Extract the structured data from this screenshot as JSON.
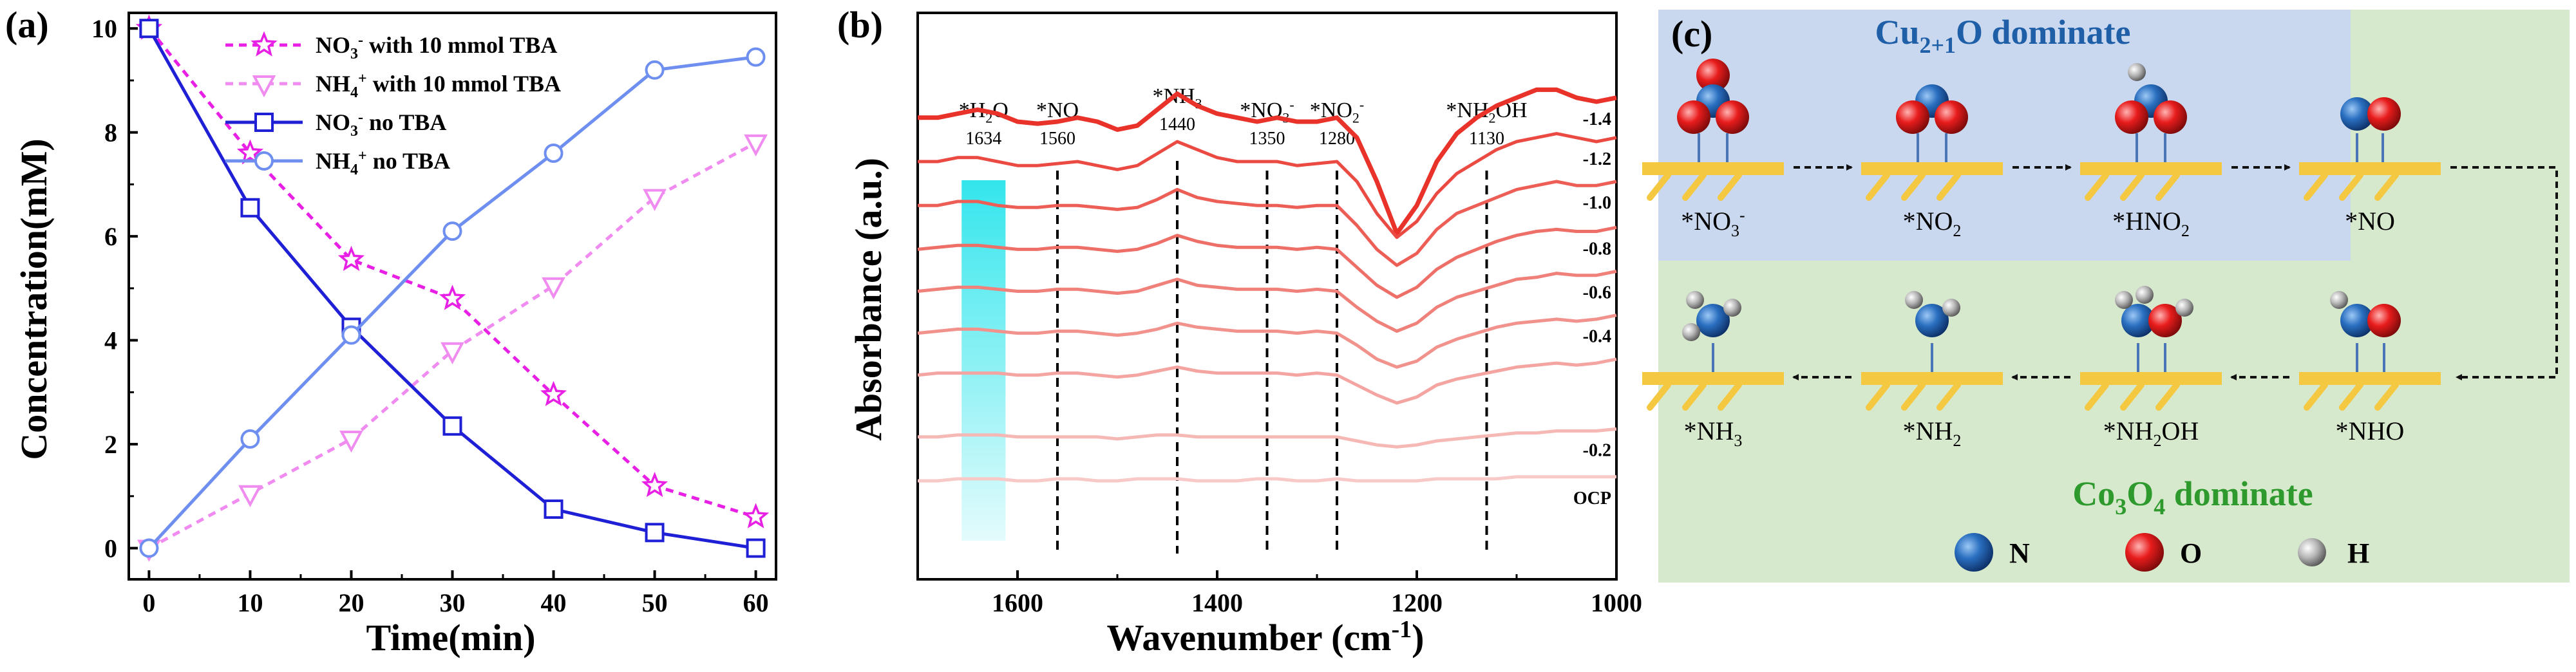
{
  "panel_labels": {
    "a": "(a)",
    "b": "(b)",
    "c": "(c)"
  },
  "chart_data": [
    {
      "type": "line",
      "panel": "(a)",
      "xlabel": "Time(min)",
      "ylabel": "Concentration(mM)",
      "xlim": [
        -2,
        62
      ],
      "ylim": [
        -0.6,
        10.3
      ],
      "xticks": [
        0,
        10,
        20,
        30,
        40,
        50,
        60
      ],
      "yticks": [
        0,
        2,
        4,
        6,
        8,
        10
      ],
      "x": [
        0,
        10,
        20,
        30,
        40,
        50,
        60
      ],
      "series": [
        {
          "name_main": "NO",
          "name_sub": "3",
          "name_sup": "-",
          "name_rest": " with 10 mmol TBA",
          "values": [
            10.0,
            7.6,
            5.55,
            4.8,
            2.95,
            1.2,
            0.6
          ],
          "color": "#e81fe4",
          "marker": "star",
          "dashed": true
        },
        {
          "name_main": "NH",
          "name_sub": "4",
          "name_sup": "+",
          "name_rest": " with 10 mmol TBA",
          "values": [
            0.0,
            1.05,
            2.1,
            3.8,
            5.05,
            6.75,
            7.8
          ],
          "color": "#f08cf0",
          "marker": "triangle-down",
          "dashed": true
        },
        {
          "name_main": "NO",
          "name_sub": "3",
          "name_sup": "-",
          "name_rest": " no TBA",
          "values": [
            10.0,
            6.55,
            4.25,
            2.35,
            0.75,
            0.3,
            0.0
          ],
          "color": "#1f1fd6",
          "marker": "square",
          "dashed": false
        },
        {
          "name_main": "NH",
          "name_sub": "4",
          "name_sup": "+",
          "name_rest": " no TBA",
          "values": [
            0.0,
            2.1,
            4.1,
            6.1,
            7.6,
            9.2,
            9.45
          ],
          "color": "#6e8ff0",
          "marker": "circle",
          "dashed": false
        }
      ]
    },
    {
      "type": "line",
      "panel": "(b)",
      "xlabel": "Wavenumber (cm",
      "xlabel_sup": "-1",
      "xlabel_end": ")",
      "ylabel": "Absorbance (a.u.)",
      "xlim": [
        1700,
        1000
      ],
      "xticks": [
        1600,
        1400,
        1200,
        1000
      ],
      "x": [
        1700,
        1680,
        1660,
        1640,
        1620,
        1600,
        1580,
        1560,
        1540,
        1520,
        1500,
        1480,
        1460,
        1440,
        1420,
        1400,
        1380,
        1360,
        1340,
        1320,
        1300,
        1280,
        1260,
        1240,
        1220,
        1200,
        1180,
        1160,
        1140,
        1120,
        1100,
        1080,
        1060,
        1040,
        1020,
        1000
      ],
      "series": [
        {
          "name": "-1.4",
          "offset": 10.0,
          "values": [
            0.6,
            0.6,
            0.7,
            0.8,
            0.7,
            0.5,
            0.45,
            0.5,
            0.6,
            0.5,
            0.3,
            0.4,
            0.8,
            1.2,
            0.9,
            0.7,
            0.6,
            0.5,
            0.6,
            0.5,
            0.5,
            0.6,
            0.1,
            -1.0,
            -2.3,
            -1.6,
            -0.5,
            0.2,
            0.6,
            0.9,
            1.1,
            1.3,
            1.3,
            1.1,
            1.0,
            1.1
          ]
        },
        {
          "name": "-1.2",
          "offset": 9.0,
          "values": [
            0.5,
            0.5,
            0.6,
            0.6,
            0.5,
            0.4,
            0.4,
            0.45,
            0.5,
            0.4,
            0.3,
            0.4,
            0.7,
            1.0,
            0.8,
            0.6,
            0.5,
            0.5,
            0.5,
            0.4,
            0.45,
            0.5,
            0.0,
            -0.8,
            -1.4,
            -1.0,
            -0.3,
            0.2,
            0.5,
            0.8,
            1.0,
            1.1,
            1.2,
            1.1,
            1.0,
            1.1
          ]
        },
        {
          "name": "-1.0",
          "offset": 8.0,
          "values": [
            0.4,
            0.4,
            0.5,
            0.5,
            0.4,
            0.35,
            0.35,
            0.4,
            0.4,
            0.35,
            0.3,
            0.35,
            0.55,
            0.8,
            0.6,
            0.5,
            0.45,
            0.4,
            0.4,
            0.35,
            0.4,
            0.4,
            -0.1,
            -0.7,
            -1.1,
            -0.8,
            -0.2,
            0.2,
            0.4,
            0.6,
            0.8,
            0.9,
            1.0,
            0.9,
            0.9,
            1.0
          ]
        },
        {
          "name": "-0.8",
          "offset": 7.0,
          "values": [
            0.3,
            0.35,
            0.4,
            0.4,
            0.35,
            0.3,
            0.3,
            0.35,
            0.35,
            0.3,
            0.25,
            0.3,
            0.45,
            0.65,
            0.5,
            0.4,
            0.35,
            0.35,
            0.35,
            0.3,
            0.35,
            0.3,
            -0.15,
            -0.6,
            -0.9,
            -0.65,
            -0.2,
            0.1,
            0.3,
            0.5,
            0.65,
            0.75,
            0.8,
            0.75,
            0.75,
            0.85
          ]
        },
        {
          "name": "-0.6",
          "offset": 6.0,
          "values": [
            0.25,
            0.3,
            0.35,
            0.35,
            0.3,
            0.25,
            0.25,
            0.3,
            0.3,
            0.25,
            0.2,
            0.25,
            0.4,
            0.55,
            0.4,
            0.35,
            0.3,
            0.3,
            0.3,
            0.25,
            0.3,
            0.25,
            -0.15,
            -0.5,
            -0.75,
            -0.55,
            -0.15,
            0.1,
            0.25,
            0.4,
            0.55,
            0.6,
            0.7,
            0.65,
            0.65,
            0.75
          ]
        },
        {
          "name": "-0.4",
          "offset": 5.0,
          "values": [
            0.2,
            0.25,
            0.3,
            0.3,
            0.25,
            0.2,
            0.2,
            0.25,
            0.25,
            0.2,
            0.15,
            0.2,
            0.3,
            0.45,
            0.35,
            0.3,
            0.25,
            0.25,
            0.25,
            0.2,
            0.25,
            0.2,
            -0.1,
            -0.45,
            -0.65,
            -0.5,
            -0.15,
            0.05,
            0.2,
            0.35,
            0.45,
            0.5,
            0.55,
            0.5,
            0.55,
            0.65
          ]
        },
        {
          "name": "",
          "offset": 4.0,
          "values": [
            0.15,
            0.2,
            0.2,
            0.2,
            0.2,
            0.15,
            0.15,
            0.2,
            0.2,
            0.15,
            0.1,
            0.15,
            0.25,
            0.35,
            0.25,
            0.2,
            0.2,
            0.2,
            0.2,
            0.15,
            0.2,
            0.15,
            -0.1,
            -0.35,
            -0.55,
            -0.4,
            -0.1,
            0.05,
            0.15,
            0.25,
            0.35,
            0.4,
            0.45,
            0.4,
            0.45,
            0.55
          ]
        },
        {
          "name": "-0.2",
          "offset": 2.5,
          "values": [
            0.1,
            0.1,
            0.15,
            0.15,
            0.15,
            0.1,
            0.1,
            0.1,
            0.1,
            0.1,
            0.05,
            0.1,
            0.15,
            0.15,
            0.1,
            0.1,
            0.1,
            0.1,
            0.1,
            0.1,
            0.1,
            0.1,
            0.0,
            -0.1,
            -0.15,
            -0.1,
            0.0,
            0.05,
            0.1,
            0.15,
            0.2,
            0.2,
            0.25,
            0.25,
            0.25,
            0.3
          ]
        },
        {
          "name": "OCP",
          "offset": 1.5,
          "values": [
            0.0,
            0.0,
            0.05,
            0.05,
            0.05,
            0.0,
            0.0,
            0.05,
            0.05,
            0.0,
            0.0,
            0.05,
            0.05,
            0.05,
            0.0,
            0.0,
            0.0,
            0.05,
            0.05,
            0.0,
            0.0,
            0.05,
            0.0,
            0.0,
            0.0,
            0.0,
            0.05,
            0.05,
            0.05,
            0.05,
            0.1,
            0.1,
            0.1,
            0.1,
            0.1,
            0.1
          ]
        }
      ],
      "annotations": [
        {
          "main": "*H",
          "sub": "2",
          "rest": "O",
          "value": "1634",
          "wavenumber": 1634,
          "highlight": true
        },
        {
          "main": "*NO",
          "sub": "",
          "sup": "",
          "rest": "",
          "value": "1560",
          "wavenumber": 1560
        },
        {
          "main": "*NH",
          "sub": "3",
          "sup": "",
          "rest": "",
          "value": "1440",
          "wavenumber": 1440
        },
        {
          "main": "*NO",
          "sub": "3",
          "sup": "-",
          "rest": "",
          "value": "1350",
          "wavenumber": 1350
        },
        {
          "main": "*NO",
          "sub": "2",
          "sup": "-",
          "rest": "",
          "value": "1280",
          "wavenumber": 1280
        },
        {
          "main": "*NH",
          "sub": "2",
          "sup": "",
          "rest": "OH",
          "value": "1130",
          "wavenumber": 1130
        }
      ]
    }
  ],
  "panel_c": {
    "top_title_main": "Cu",
    "top_title_sub": "2+1",
    "top_title_rest": "O dominate",
    "bottom_title_main": "Co",
    "bottom_title_sub1": "3",
    "bottom_title_mid": "O",
    "bottom_title_sub2": "4",
    "bottom_title_rest": " dominate",
    "top_row": [
      {
        "main": "*NO",
        "sub": "3",
        "sup": "-",
        "rest": ""
      },
      {
        "main": "*NO",
        "sub": "2",
        "sup": "",
        "rest": ""
      },
      {
        "main": "*HNO",
        "sub": "2",
        "sup": "",
        "rest": ""
      },
      {
        "main": "*NO",
        "sub": "",
        "sup": "",
        "rest": ""
      }
    ],
    "bottom_row": [
      {
        "main": "*NH",
        "sub": "3",
        "sup": "",
        "rest": ""
      },
      {
        "main": "*NH",
        "sub": "2",
        "sup": "",
        "rest": ""
      },
      {
        "main": "*NH",
        "sub": "2",
        "sup": "",
        "rest": "OH"
      },
      {
        "main": "*NHO",
        "sub": "",
        "sup": "",
        "rest": ""
      }
    ],
    "legend": [
      {
        "label": "N",
        "color": "#1f5fa8"
      },
      {
        "label": "O",
        "color": "#e01c1c"
      },
      {
        "label": "H",
        "color": "#9a9a9a"
      }
    ],
    "colors": {
      "top_bg": "#c9d8ee",
      "bottom_bg": "#d7e9cc",
      "surface": "#f5c842",
      "top_title": "#1f5fa8",
      "bottom_title": "#2e9a2e"
    }
  }
}
